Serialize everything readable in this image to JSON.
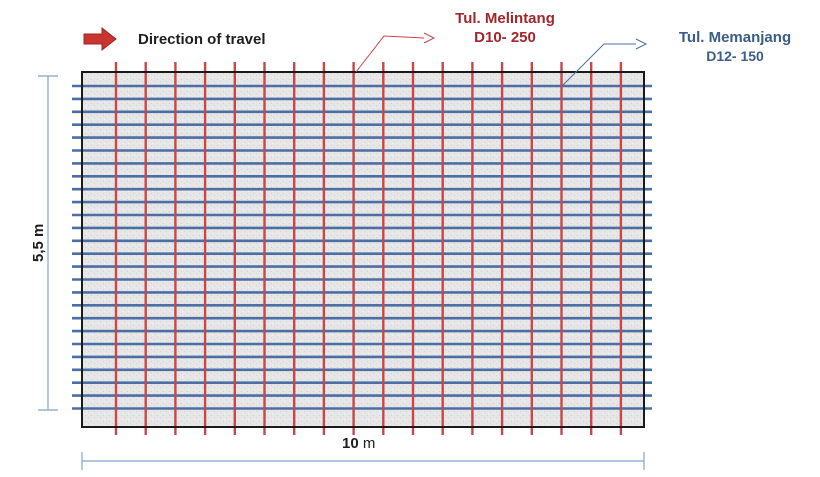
{
  "legend": {
    "direction_label": "Direction of travel"
  },
  "transverse": {
    "name": "Tul. Melintang",
    "spec": "D10- 250",
    "spacing_mm": 250
  },
  "longitudinal": {
    "name": "Tul. Memanjang",
    "spec": "D12- 150",
    "spacing_mm": 150
  },
  "dimensions": {
    "width_label_value": "10",
    "width_label_unit": " m",
    "height_label": "5,5 m"
  },
  "colors": {
    "transverse_bar": "#c9464a",
    "longitudinal_bar": "#4a6fa5",
    "slab_fill": "#e4e4e4",
    "slab_border": "#1a1a1a",
    "dimension_line": "#7fa6c9",
    "arrow": "#c8352e",
    "transverse_text": "#a3262a",
    "longitudinal_text": "#3b5d89"
  },
  "icons": {
    "direction": "right-arrow-icon"
  }
}
